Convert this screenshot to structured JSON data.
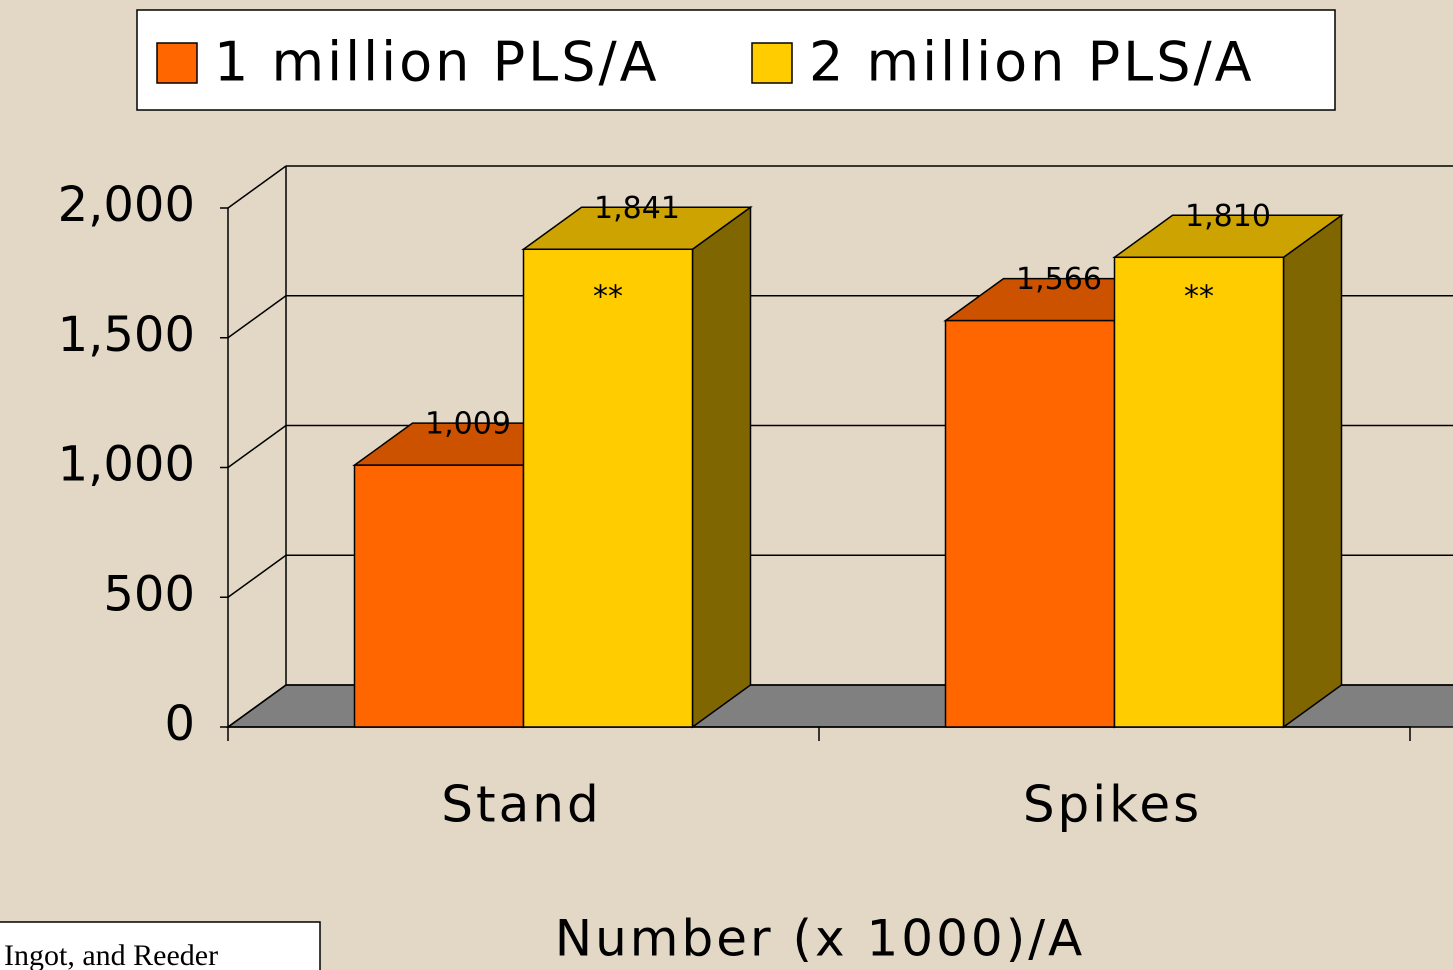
{
  "chart_data": {
    "type": "bar3d",
    "categories": [
      "Stand",
      "Spikes"
    ],
    "series": [
      {
        "name": "1 million PLS/A",
        "color": "#ff6600",
        "values": [
          1009,
          1566
        ],
        "value_labels": [
          "1,009",
          "1,566"
        ]
      },
      {
        "name": "2 million PLS/A",
        "color": "#ffcc00",
        "values": [
          1841,
          1810
        ],
        "value_labels": [
          "1,841",
          "1,810"
        ]
      }
    ],
    "annotations": [
      "**",
      "**"
    ],
    "ylim": [
      0,
      2000
    ],
    "yticks": [
      0,
      500,
      {
        "value": 1000,
        "label": "1,000"
      },
      {
        "value": 1500,
        "label": "1,500"
      },
      {
        "value": 2000,
        "label": "2,000"
      }
    ],
    "xlabel": "Number (x 1000)/A",
    "source": "Ingot, and Reeder",
    "grid": true
  }
}
